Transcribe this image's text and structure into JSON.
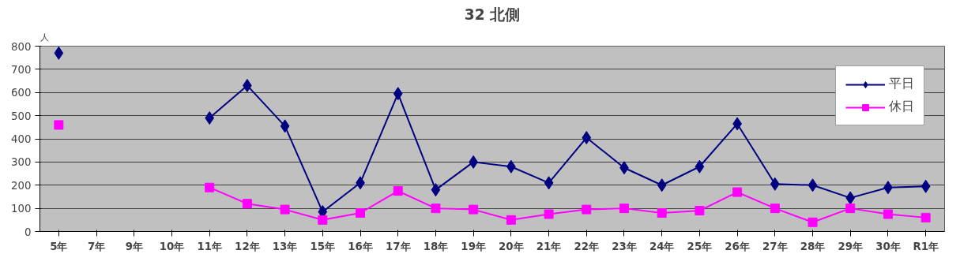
{
  "chart_data": {
    "type": "line",
    "title": "32 北側",
    "ylabel": "人",
    "categories": [
      "5年",
      "7年",
      "9年",
      "10年",
      "11年",
      "12年",
      "13年",
      "15年",
      "16年",
      "17年",
      "18年",
      "19年",
      "20年",
      "21年",
      "22年",
      "23年",
      "24年",
      "25年",
      "26年",
      "27年",
      "28年",
      "29年",
      "30年",
      "R1年"
    ],
    "series": [
      {
        "name": "平日",
        "color": "#000080",
        "marker": "diamond",
        "values": [
          770,
          null,
          null,
          null,
          490,
          630,
          455,
          85,
          210,
          595,
          180,
          300,
          280,
          210,
          405,
          275,
          200,
          280,
          465,
          205,
          200,
          145,
          190,
          195
        ]
      },
      {
        "name": "休日",
        "color": "#ff00ff",
        "marker": "square",
        "values": [
          460,
          null,
          null,
          null,
          190,
          120,
          95,
          50,
          80,
          175,
          100,
          95,
          50,
          75,
          95,
          100,
          80,
          90,
          170,
          100,
          40,
          100,
          75,
          60
        ]
      }
    ],
    "ylim": [
      0,
      800
    ],
    "yticks": [
      0,
      100,
      200,
      300,
      400,
      500,
      600,
      700,
      800
    ],
    "grid": "y",
    "legend": "top right"
  }
}
